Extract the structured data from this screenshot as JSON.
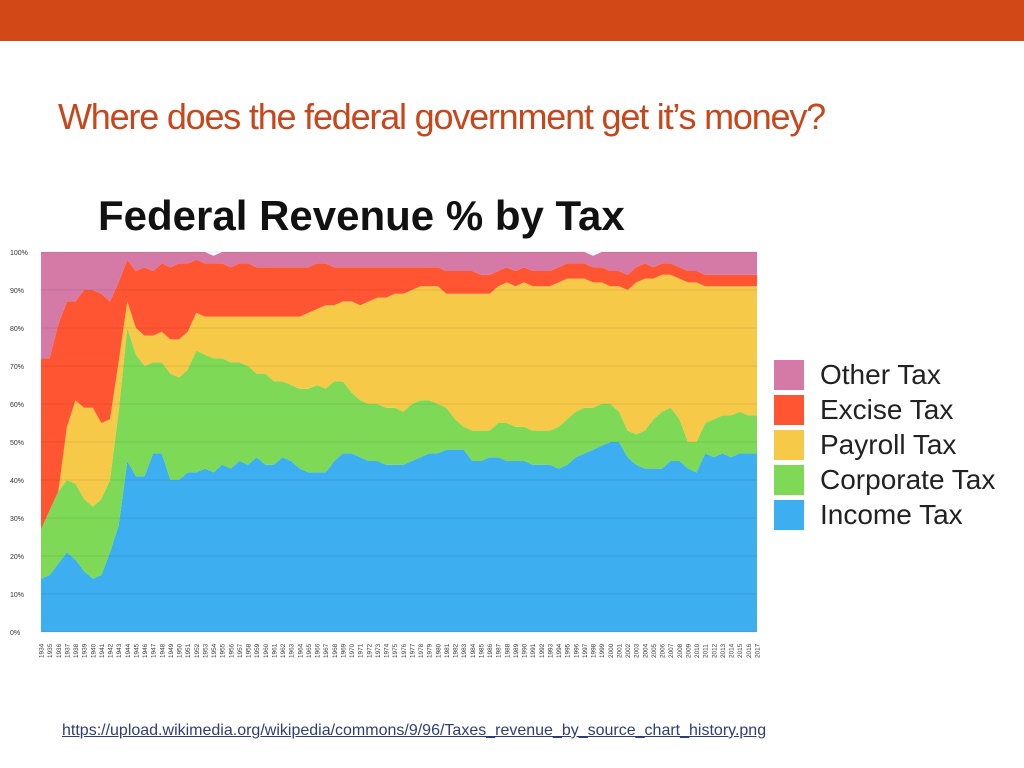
{
  "header": {
    "title": "Where does the federal government get it’s money?",
    "accent_color": "#d34817"
  },
  "source": {
    "url": "https://upload.wikimedia.org/wikipedia/commons/9/96/Taxes_revenue_by_source_chart_history.png"
  },
  "chart_data": {
    "type": "area",
    "title": "Federal Revenue % by Tax",
    "xlabel": "",
    "ylabel": "",
    "ylim": [
      0,
      100
    ],
    "yticks": [
      "0%",
      "10%",
      "20%",
      "30%",
      "40%",
      "50%",
      "60%",
      "70%",
      "80%",
      "90%",
      "100%"
    ],
    "grid": true,
    "legend_position": "right",
    "stacked": true,
    "x": [
      1934,
      1935,
      1936,
      1937,
      1938,
      1939,
      1940,
      1941,
      1942,
      1943,
      1944,
      1945,
      1946,
      1947,
      1948,
      1949,
      1950,
      1951,
      1952,
      1953,
      1954,
      1955,
      1956,
      1957,
      1958,
      1959,
      1960,
      1961,
      1962,
      1963,
      1964,
      1965,
      1966,
      1967,
      1968,
      1969,
      1970,
      1971,
      1972,
      1973,
      1974,
      1975,
      1976,
      1977,
      1978,
      1979,
      1980,
      1981,
      1982,
      1983,
      1984,
      1985,
      1986,
      1987,
      1988,
      1989,
      1990,
      1991,
      1992,
      1993,
      1994,
      1995,
      1996,
      1997,
      1998,
      1999,
      2000,
      2001,
      2002,
      2003,
      2004,
      2005,
      2006,
      2007,
      2008,
      2009,
      2010,
      2011,
      2012,
      2013,
      2014,
      2015,
      2016,
      2017
    ],
    "series": [
      {
        "name": "Income Tax",
        "color": "#3daef0",
        "values": [
          14,
          15,
          18,
          21,
          19,
          16,
          14,
          15,
          21,
          28,
          45,
          41,
          41,
          47,
          47,
          40,
          40,
          42,
          42,
          43,
          42,
          44,
          43,
          45,
          44,
          46,
          44,
          44,
          46,
          45,
          43,
          42,
          42,
          42,
          45,
          47,
          47,
          46,
          45,
          45,
          44,
          44,
          44,
          45,
          46,
          47,
          47,
          48,
          48,
          48,
          45,
          45,
          46,
          46,
          45,
          45,
          45,
          44,
          44,
          44,
          43,
          44,
          46,
          47,
          48,
          49,
          50,
          50,
          46,
          44,
          43,
          43,
          43,
          45,
          45,
          43,
          42,
          47,
          46,
          47,
          46,
          47,
          47,
          47
        ]
      },
      {
        "name": "Corporate Tax",
        "color": "#7ed957",
        "values": [
          13,
          17,
          19,
          19,
          20,
          19,
          19,
          20,
          19,
          30,
          35,
          32,
          29,
          24,
          24,
          28,
          27,
          27,
          32,
          30,
          30,
          28,
          28,
          26,
          26,
          22,
          24,
          22,
          20,
          20,
          21,
          22,
          23,
          22,
          21,
          19,
          16,
          15,
          15,
          15,
          15,
          15,
          14,
          15,
          15,
          14,
          13,
          11,
          8,
          6,
          8,
          8,
          7,
          9,
          10,
          9,
          9,
          9,
          9,
          9,
          11,
          12,
          12,
          12,
          11,
          11,
          10,
          8,
          7,
          8,
          10,
          13,
          15,
          14,
          11,
          7,
          8,
          8,
          10,
          10,
          11,
          11,
          10,
          10
        ]
      },
      {
        "name": "Payroll Tax",
        "color": "#f7c948",
        "values": [
          0,
          0,
          0,
          14,
          22,
          24,
          26,
          20,
          16,
          13,
          7,
          7,
          8,
          7,
          8,
          9,
          10,
          10,
          10,
          10,
          11,
          11,
          12,
          12,
          13,
          15,
          15,
          17,
          17,
          18,
          19,
          20,
          20,
          22,
          20,
          21,
          24,
          25,
          27,
          28,
          29,
          30,
          31,
          30,
          30,
          30,
          31,
          30,
          33,
          35,
          36,
          36,
          36,
          36,
          37,
          37,
          38,
          38,
          38,
          38,
          38,
          37,
          35,
          34,
          33,
          32,
          31,
          33,
          37,
          40,
          40,
          37,
          36,
          35,
          37,
          42,
          42,
          36,
          35,
          34,
          34,
          33,
          34,
          34
        ]
      },
      {
        "name": "Excise Tax",
        "color": "#ff5533",
        "values": [
          45,
          40,
          44,
          33,
          26,
          31,
          31,
          34,
          31,
          21,
          11,
          15,
          18,
          17,
          18,
          19,
          20,
          18,
          14,
          14,
          14,
          14,
          13,
          14,
          14,
          13,
          13,
          13,
          13,
          13,
          13,
          12,
          12,
          11,
          10,
          9,
          9,
          10,
          9,
          8,
          8,
          7,
          7,
          6,
          5,
          5,
          5,
          6,
          6,
          6,
          6,
          5,
          5,
          4,
          4,
          4,
          4,
          4,
          4,
          4,
          4,
          4,
          4,
          4,
          4,
          4,
          4,
          4,
          4,
          4,
          4,
          3,
          3,
          3,
          3,
          3,
          3,
          3,
          3,
          3,
          3,
          3,
          3,
          3
        ]
      },
      {
        "name": "Other Tax",
        "color": "#d57aa6",
        "values": [
          28,
          28,
          19,
          13,
          13,
          10,
          10,
          11,
          13,
          8,
          2,
          5,
          4,
          5,
          3,
          4,
          3,
          3,
          2,
          3,
          2,
          3,
          4,
          3,
          3,
          4,
          4,
          4,
          4,
          4,
          4,
          4,
          3,
          3,
          4,
          4,
          4,
          4,
          4,
          4,
          4,
          4,
          4,
          4,
          4,
          4,
          4,
          5,
          5,
          5,
          5,
          6,
          6,
          5,
          4,
          5,
          4,
          5,
          5,
          5,
          4,
          3,
          3,
          3,
          3,
          4,
          5,
          5,
          6,
          4,
          3,
          4,
          3,
          3,
          4,
          5,
          5,
          6,
          6,
          6,
          6,
          6,
          6,
          6
        ]
      }
    ]
  }
}
